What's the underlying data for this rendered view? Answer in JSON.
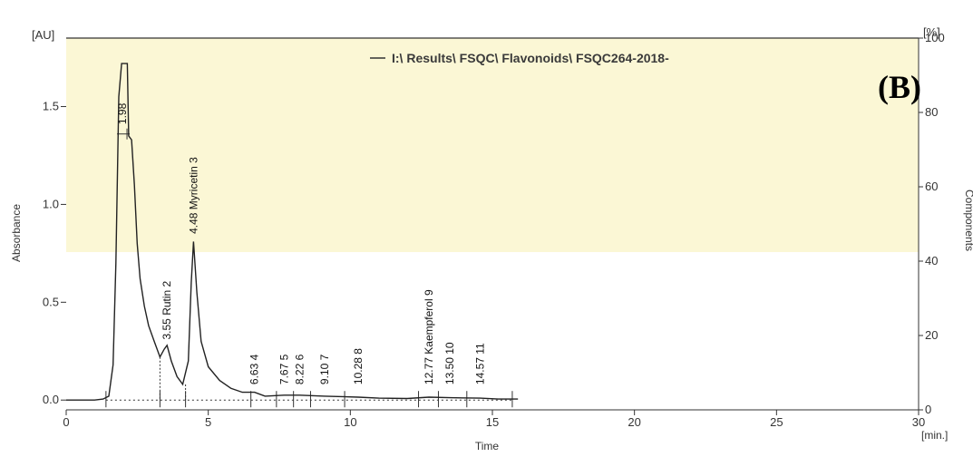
{
  "chart_data": {
    "type": "line",
    "panel_label": "(B)",
    "legend_label": "I:\\ Results\\ FSQC\\ Flavonoids\\ FSQC264-2018-",
    "xlabel": "Time",
    "x_unit": "[min.]",
    "ylabel": "Absorbance",
    "y_unit": "[AU]",
    "y2label": "Components",
    "y2_unit": "[%]",
    "xlim": [
      0,
      30
    ],
    "ylim": [
      -0.05,
      1.85
    ],
    "y2lim": [
      0,
      100
    ],
    "x_ticks": [
      0,
      5,
      10,
      15,
      20,
      25,
      30
    ],
    "y_ticks": [
      0.0,
      0.5,
      1.0,
      1.5
    ],
    "y_tick_labels": [
      "0.0",
      "0.5",
      "1.0",
      "1.5"
    ],
    "y2_ticks": [
      0,
      20,
      40,
      60,
      80,
      100
    ],
    "series": [
      {
        "values": [
          [
            0.0,
            0.0
          ],
          [
            1.0,
            0.0
          ],
          [
            1.3,
            0.005
          ],
          [
            1.5,
            0.02
          ],
          [
            1.65,
            0.18
          ],
          [
            1.75,
            0.7
          ],
          [
            1.85,
            1.55
          ],
          [
            1.95,
            1.72
          ],
          [
            2.15,
            1.72
          ],
          [
            2.2,
            1.35
          ],
          [
            2.3,
            1.33
          ],
          [
            2.4,
            1.1
          ],
          [
            2.5,
            0.8
          ],
          [
            2.6,
            0.62
          ],
          [
            2.75,
            0.48
          ],
          [
            2.9,
            0.38
          ],
          [
            3.1,
            0.3
          ],
          [
            3.3,
            0.22
          ],
          [
            3.45,
            0.26
          ],
          [
            3.55,
            0.28
          ],
          [
            3.7,
            0.2
          ],
          [
            3.9,
            0.12
          ],
          [
            4.1,
            0.08
          ],
          [
            4.3,
            0.2
          ],
          [
            4.4,
            0.6
          ],
          [
            4.48,
            0.81
          ],
          [
            4.6,
            0.55
          ],
          [
            4.75,
            0.3
          ],
          [
            5.0,
            0.17
          ],
          [
            5.4,
            0.1
          ],
          [
            5.8,
            0.06
          ],
          [
            6.2,
            0.04
          ],
          [
            6.63,
            0.04
          ],
          [
            7.0,
            0.02
          ],
          [
            7.67,
            0.025
          ],
          [
            8.22,
            0.025
          ],
          [
            9.1,
            0.02
          ],
          [
            10.28,
            0.015
          ],
          [
            11.0,
            0.01
          ],
          [
            12.0,
            0.008
          ],
          [
            12.77,
            0.015
          ],
          [
            13.5,
            0.012
          ],
          [
            14.57,
            0.01
          ],
          [
            15.2,
            0.005
          ],
          [
            15.9,
            0.005
          ]
        ]
      }
    ],
    "peaks": [
      {
        "id": "1",
        "time": 1.98,
        "label": "1.98",
        "y": 1.4
      },
      {
        "id": "2",
        "time": 3.55,
        "label": "3.55 Rutin 2",
        "y": 0.3
      },
      {
        "id": "3",
        "time": 4.48,
        "label": "4.48 Myricetin 3",
        "y": 0.84
      },
      {
        "id": "4",
        "time": 6.63,
        "label": "6.63 4",
        "y": 0.07
      },
      {
        "id": "5",
        "time": 7.67,
        "label": "7.67 5",
        "y": 0.07
      },
      {
        "id": "6",
        "time": 8.22,
        "label": "8.22 6",
        "y": 0.07
      },
      {
        "id": "7",
        "time": 9.1,
        "label": "9.10 7",
        "y": 0.07
      },
      {
        "id": "8",
        "time": 10.28,
        "label": "10.28 8",
        "y": 0.07
      },
      {
        "id": "9",
        "time": 12.77,
        "label": "12.77 Kaempferol 9",
        "y": 0.07
      },
      {
        "id": "10",
        "time": 13.5,
        "label": "13.50 10",
        "y": 0.07
      },
      {
        "id": "11",
        "time": 14.57,
        "label": "14.57 11",
        "y": 0.07
      }
    ],
    "integration_marks": [
      1.4,
      3.3,
      4.2,
      6.5,
      7.4,
      8.0,
      8.6,
      9.8,
      12.4,
      13.1,
      14.1,
      15.7
    ],
    "grid": false,
    "legend_position": "top-center",
    "colors": {
      "plot_background": "#fbf7d5",
      "trace": "#222222",
      "axis": "#333333"
    }
  }
}
